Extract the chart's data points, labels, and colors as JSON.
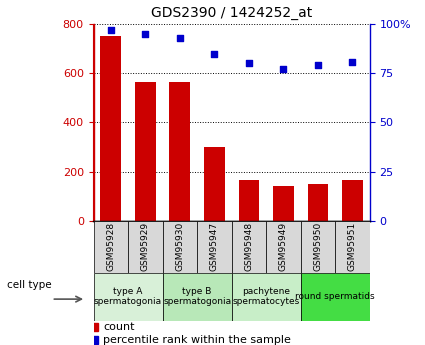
{
  "title": "GDS2390 / 1424252_at",
  "samples": [
    "GSM95928",
    "GSM95929",
    "GSM95930",
    "GSM95947",
    "GSM95948",
    "GSM95949",
    "GSM95950",
    "GSM95951"
  ],
  "counts": [
    750,
    565,
    565,
    300,
    165,
    140,
    150,
    168
  ],
  "percentiles": [
    97,
    95,
    93,
    85,
    80,
    77,
    79,
    81
  ],
  "cell_types": [
    {
      "label": "type A\nspermatogonia",
      "samples": [
        0,
        1
      ],
      "color": "#d8f0d8"
    },
    {
      "label": "type B\nspermatogonia",
      "samples": [
        2,
        3
      ],
      "color": "#b8e8b8"
    },
    {
      "label": "pachytene\nspermatocytes",
      "samples": [
        4,
        5
      ],
      "color": "#c8eec8"
    },
    {
      "label": "round spermatids",
      "samples": [
        6,
        7
      ],
      "color": "#44dd44"
    }
  ],
  "bar_color": "#cc0000",
  "dot_color": "#0000cc",
  "ylim_left": [
    0,
    800
  ],
  "ylim_right": [
    0,
    100
  ],
  "yticks_left": [
    0,
    200,
    400,
    600,
    800
  ],
  "yticks_right": [
    0,
    25,
    50,
    75,
    100
  ],
  "yticklabels_right": [
    "0",
    "25",
    "50",
    "75",
    "100%"
  ],
  "legend_count_label": "count",
  "legend_percentile_label": "percentile rank within the sample",
  "cell_type_label": "cell type",
  "sample_box_color": "#d8d8d8"
}
